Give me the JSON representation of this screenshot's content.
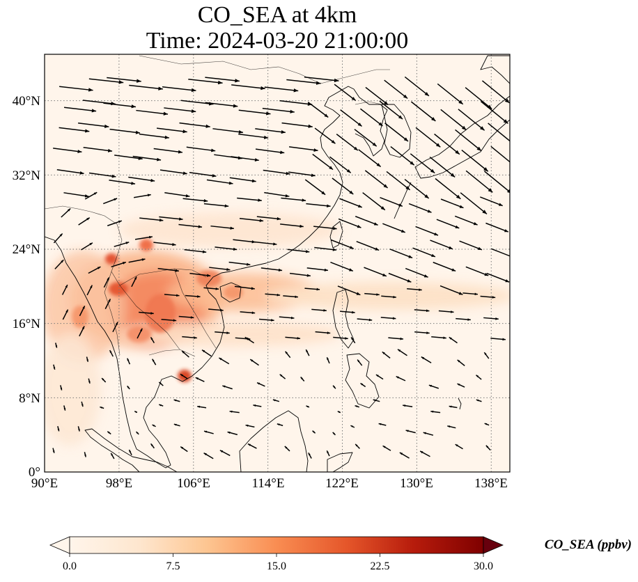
{
  "title": {
    "line1": "CO_SEA at 4km",
    "line2": "Time: 2024-03-20 21:00:00"
  },
  "map": {
    "lon_range": [
      90,
      140
    ],
    "lat_range": [
      0,
      45
    ],
    "background_color": "#fff5eb",
    "gridlines": "dotted",
    "x_ticks": [
      "90°E",
      "98°E",
      "106°E",
      "114°E",
      "122°E",
      "130°E",
      "138°E"
    ],
    "x_tick_values": [
      90,
      98,
      106,
      114,
      122,
      130,
      138
    ],
    "y_ticks": [
      "0°",
      "8°N",
      "16°N",
      "24°N",
      "32°N",
      "40°N"
    ],
    "y_tick_values": [
      0,
      8,
      16,
      24,
      32,
      40
    ]
  },
  "colorbar": {
    "label": "CO_SEA (ppbv)",
    "ticks": [
      "0.0",
      "7.5",
      "15.0",
      "22.5",
      "30.0"
    ],
    "tick_values": [
      0,
      7.5,
      15,
      22.5,
      30
    ],
    "range": [
      0,
      30
    ],
    "colormap": [
      "#fff5eb",
      "#fdd4a8",
      "#fdab67",
      "#f2703d",
      "#d94801",
      "#a50f15",
      "#67000d"
    ]
  },
  "chart_data": {
    "type": "heatmap",
    "field": "CO_SEA (ppbv)",
    "hotspots": [
      {
        "lon": 101.5,
        "lat": 17.0,
        "value": 14
      },
      {
        "lon": 99.0,
        "lat": 18.5,
        "value": 16
      },
      {
        "lon": 97.5,
        "lat": 22.5,
        "value": 18
      },
      {
        "lon": 103.5,
        "lat": 24.0,
        "value": 12
      },
      {
        "lon": 106.5,
        "lat": 10.5,
        "value": 17
      },
      {
        "lon": 111.5,
        "lat": 20.0,
        "value": 10
      },
      {
        "lon": 95.5,
        "lat": 16.0,
        "value": 11
      },
      {
        "lon": 118.0,
        "lat": 18.0,
        "value": 5
      }
    ]
  }
}
